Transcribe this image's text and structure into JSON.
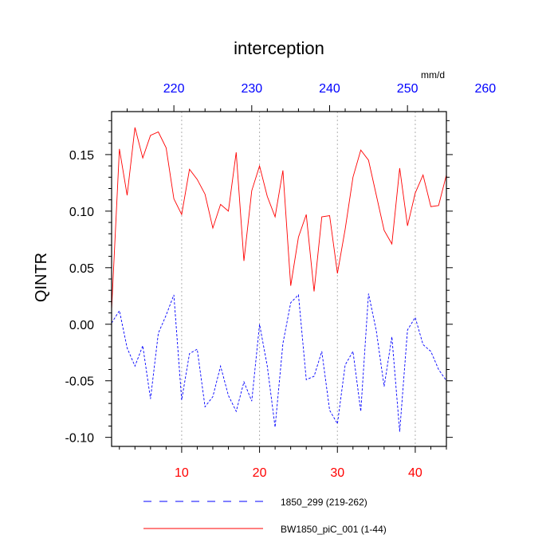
{
  "chart_data": {
    "type": "line",
    "title": "interception",
    "ylabel": "QINTR",
    "top_axis_units": "mm/d",
    "xlim": [
      1,
      44
    ],
    "ylim": [
      -0.108,
      0.188
    ],
    "x_ticks": [
      "10",
      "20",
      "30",
      "40"
    ],
    "x_tick_values": [
      10,
      20,
      30,
      40
    ],
    "x_tick_color": "#ff0000",
    "top_ticks": [
      "220",
      "230",
      "240",
      "250",
      "260"
    ],
    "top_tick_values": [
      220,
      230,
      240,
      250,
      260
    ],
    "top_offset": 211,
    "top_tick_color": "#0000ff",
    "y_ticks": [
      "0.15",
      "0.10",
      "0.05",
      "0.00",
      "-0.05",
      "-0.10"
    ],
    "y_tick_values": [
      0.15,
      0.1,
      0.05,
      0.0,
      -0.05,
      -0.1
    ],
    "grid": "vertical dotted at major x ticks",
    "legend_placement": "bottom",
    "series": [
      {
        "name": "BW1850_piC_001 (1-44)",
        "color": "#ff0000",
        "dash": "solid",
        "x": [
          1,
          2,
          3,
          4,
          5,
          6,
          7,
          8,
          9,
          10,
          11,
          12,
          13,
          14,
          15,
          16,
          17,
          18,
          19,
          20,
          21,
          22,
          23,
          24,
          25,
          26,
          27,
          28,
          29,
          30,
          31,
          32,
          33,
          34,
          35,
          36,
          37,
          38,
          39,
          40,
          41,
          42,
          43,
          44
        ],
        "values": [
          0.013,
          0.155,
          0.114,
          0.174,
          0.147,
          0.167,
          0.17,
          0.156,
          0.111,
          0.097,
          0.137,
          0.128,
          0.115,
          0.085,
          0.106,
          0.1,
          0.152,
          0.056,
          0.118,
          0.14,
          0.113,
          0.095,
          0.136,
          0.034,
          0.077,
          0.097,
          0.029,
          0.095,
          0.096,
          0.045,
          0.084,
          0.13,
          0.154,
          0.145,
          0.114,
          0.083,
          0.071,
          0.138,
          0.087,
          0.116,
          0.132,
          0.104,
          0.105,
          0.132
        ]
      },
      {
        "name": "1850_299 (219-262)",
        "color": "#0000ff",
        "dash": "dashed",
        "x": [
          1,
          2,
          3,
          4,
          5,
          6,
          7,
          8,
          9,
          10,
          11,
          12,
          13,
          14,
          15,
          16,
          17,
          18,
          19,
          20,
          21,
          22,
          23,
          24,
          25,
          26,
          27,
          28,
          29,
          30,
          31,
          32,
          33,
          34,
          35,
          36,
          37,
          38,
          39,
          40,
          41,
          42,
          43,
          44
        ],
        "values": [
          0.001,
          0.012,
          -0.021,
          -0.037,
          -0.019,
          -0.066,
          -0.008,
          0.008,
          0.026,
          -0.067,
          -0.026,
          -0.022,
          -0.073,
          -0.064,
          -0.037,
          -0.063,
          -0.077,
          -0.051,
          -0.068,
          0.0,
          -0.037,
          -0.091,
          -0.017,
          0.019,
          0.026,
          -0.049,
          -0.046,
          -0.024,
          -0.076,
          -0.088,
          -0.036,
          -0.024,
          -0.077,
          0.027,
          -0.006,
          -0.055,
          -0.011,
          -0.095,
          -0.005,
          0.006,
          -0.018,
          -0.024,
          -0.04,
          -0.05
        ]
      }
    ],
    "legend": [
      {
        "label": "1850_299 (219-262)",
        "color": "#0000ff",
        "dash": "dashed"
      },
      {
        "label": "BW1850_piC_001 (1-44)",
        "color": "#ff0000",
        "dash": "solid"
      }
    ]
  }
}
